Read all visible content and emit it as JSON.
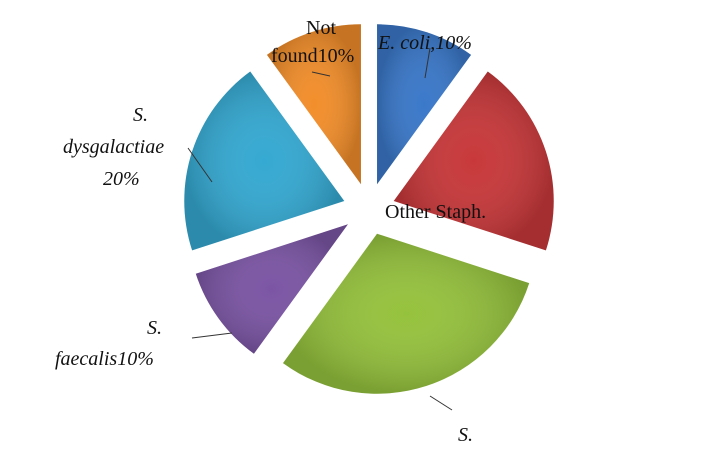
{
  "chart_data": {
    "type": "pie",
    "exploded": true,
    "slices": [
      {
        "key": "ecoli",
        "label": "E. coli,10%",
        "value": 10,
        "color": "#3a78c9"
      },
      {
        "key": "other_staph",
        "label": "Other Staph.",
        "value": 20,
        "color": "#c8383a"
      },
      {
        "key": "s_unknown",
        "label": "S.",
        "value": 30,
        "color": "#95c23d"
      },
      {
        "key": "s_faecalis",
        "label_lines": [
          "S.",
          "faecalis10%"
        ],
        "value": 10,
        "color": "#7b55a4"
      },
      {
        "key": "s_dysgalactiae",
        "label_lines": [
          "S.",
          "dysgalactiae",
          "20%"
        ],
        "value": 20,
        "color": "#35a9d2"
      },
      {
        "key": "not_found",
        "label_lines": [
          "Not",
          "found10%"
        ],
        "value": 10,
        "color": "#f28e2b"
      }
    ]
  }
}
